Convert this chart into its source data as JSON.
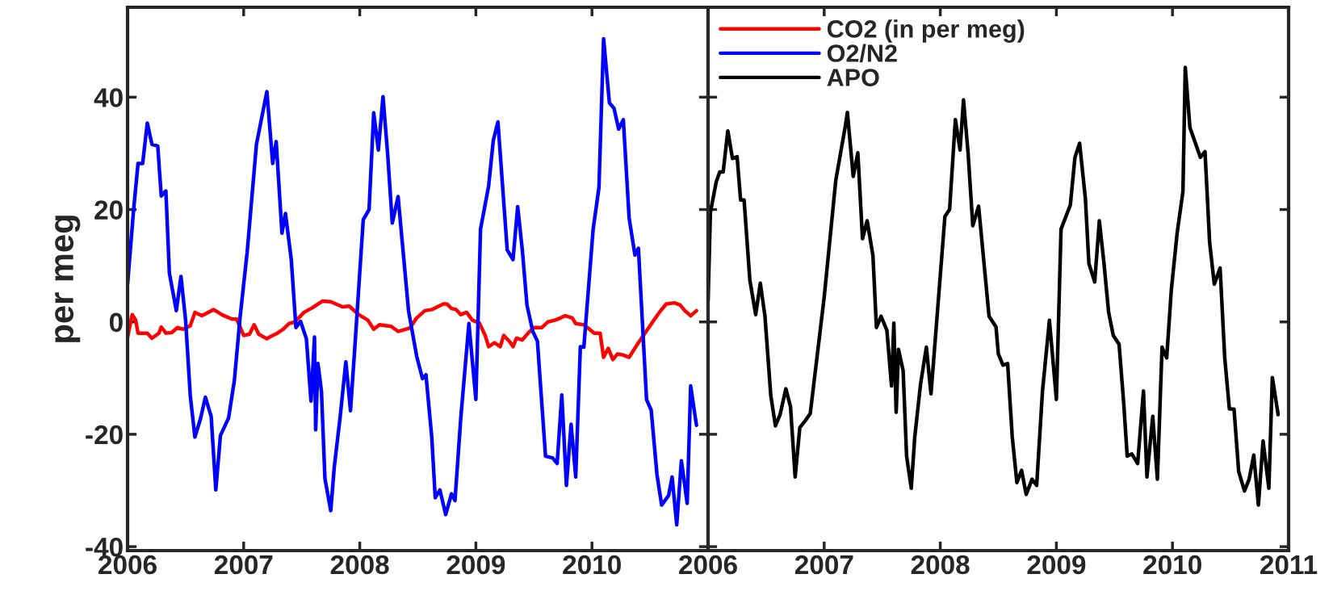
{
  "chart_data": [
    {
      "type": "line",
      "ylabel": "per meg",
      "xlim": [
        2006,
        2011
      ],
      "ylim": [
        -40.7,
        56
      ],
      "xticks": [
        2006,
        2007,
        2008,
        2009,
        2010,
        {
          "value": 2011,
          "label": null
        }
      ],
      "yticks": [
        -40,
        -20,
        0,
        20,
        40
      ],
      "grid": false,
      "legend": "right",
      "marker": "none",
      "line_style": "solid",
      "series": [
        {
          "name": "CO2 (in per meg)",
          "color": "#ff0000",
          "x": [
            2006.0,
            2006.04,
            2006.07,
            2006.09,
            2006.17,
            2006.21,
            2006.27,
            2006.29,
            2006.33,
            2006.38,
            2006.43,
            2006.48,
            2006.54,
            2006.58,
            2006.64,
            2006.74,
            2006.82,
            2006.9,
            2006.94,
            2007.0,
            2007.05,
            2007.09,
            2007.13,
            2007.2,
            2007.24,
            2007.29,
            2007.34,
            2007.39,
            2007.44,
            2007.52,
            2007.59,
            2007.68,
            2007.75,
            2007.85,
            2007.91,
            2007.99,
            2008.07,
            2008.12,
            2008.17,
            2008.27,
            2008.33,
            2008.43,
            2008.49,
            2008.56,
            2008.62,
            2008.72,
            2008.75,
            2008.79,
            2008.83,
            2008.87,
            2008.92,
            2008.97,
            2009.03,
            2009.08,
            2009.11,
            2009.16,
            2009.21,
            2009.24,
            2009.29,
            2009.32,
            2009.35,
            2009.4,
            2009.45,
            2009.5,
            2009.57,
            2009.62,
            2009.68,
            2009.73,
            2009.77,
            2009.83,
            2009.86,
            2009.93,
            2009.99,
            2010.02,
            2010.07,
            2010.1,
            2010.14,
            2010.18,
            2010.22,
            2010.27,
            2010.32,
            2010.36,
            2010.41,
            2010.48,
            2010.53,
            2010.58,
            2010.64,
            2010.71,
            2010.76,
            2010.8,
            2010.85,
            2010.9
          ],
          "values": [
            -2.7,
            1.3,
            0.3,
            -2.0,
            -2.0,
            -2.9,
            -2.0,
            -0.9,
            -2.0,
            -1.9,
            -1.0,
            -1.3,
            -0.7,
            1.7,
            1.1,
            2.2,
            1.2,
            0.5,
            0.5,
            -2.4,
            -2.2,
            -0.5,
            -2.2,
            -3.0,
            -2.5,
            -2.0,
            -1.3,
            -0.3,
            0.0,
            1.7,
            2.5,
            3.7,
            3.6,
            2.7,
            2.8,
            1.3,
            0.3,
            -1.3,
            -0.5,
            -0.8,
            -1.7,
            -1.1,
            0.7,
            2.0,
            2.2,
            3.2,
            3.2,
            2.4,
            2.2,
            1.3,
            1.7,
            0.3,
            -0.2,
            -2.4,
            -4.4,
            -3.7,
            -4.4,
            -2.4,
            -3.5,
            -4.4,
            -2.9,
            -3.2,
            -2.0,
            -1.0,
            -1.0,
            0.0,
            0.3,
            0.7,
            1.1,
            0.7,
            -0.3,
            -0.5,
            -1.5,
            -2.0,
            -2.0,
            -6.3,
            -4.7,
            -6.7,
            -5.7,
            -5.9,
            -6.3,
            -5.0,
            -3.4,
            -1.3,
            0.2,
            1.7,
            3.2,
            3.4,
            3.0,
            2.0,
            1.1,
            2.0
          ]
        },
        {
          "name": "O2/N2",
          "color": "#0000ff",
          "x": [
            2006.0,
            2006.05,
            2006.09,
            2006.13,
            2006.17,
            2006.21,
            2006.26,
            2006.29,
            2006.33,
            2006.36,
            2006.42,
            2006.46,
            2006.5,
            2006.54,
            2006.58,
            2006.63,
            2006.67,
            2006.72,
            2006.76,
            2006.8,
            2006.87,
            2006.92,
            2006.97,
            2007.03,
            2007.11,
            2007.2,
            2007.25,
            2007.28,
            2007.33,
            2007.36,
            2007.41,
            2007.45,
            2007.49,
            2007.54,
            2007.58,
            2007.61,
            2007.62,
            2007.64,
            2007.67,
            2007.7,
            2007.75,
            2007.78,
            2007.83,
            2007.88,
            2007.92,
            2007.96,
            2008.03,
            2008.08,
            2008.12,
            2008.16,
            2008.2,
            2008.24,
            2008.28,
            2008.33,
            2008.42,
            2008.49,
            2008.54,
            2008.57,
            2008.62,
            2008.65,
            2008.69,
            2008.74,
            2008.79,
            2008.82,
            2008.87,
            2008.94,
            2009.0,
            2009.04,
            2009.11,
            2009.15,
            2009.19,
            2009.27,
            2009.32,
            2009.36,
            2009.4,
            2009.44,
            2009.49,
            2009.53,
            2009.6,
            2009.66,
            2009.7,
            2009.74,
            2009.78,
            2009.82,
            2009.86,
            2009.9,
            2009.93,
            2010.01,
            2010.06,
            2010.1,
            2010.15,
            2010.19,
            2010.23,
            2010.27,
            2010.32,
            2010.37,
            2010.4,
            2010.47,
            2010.51,
            2010.56,
            2010.6,
            2010.66,
            2010.69,
            2010.73,
            2010.77,
            2010.82,
            2010.85,
            2010.9
          ],
          "values": [
            6.7,
            19.5,
            28.2,
            28.2,
            35.4,
            31.6,
            31.3,
            22.4,
            23.3,
            8.7,
            2.0,
            8.1,
            0.3,
            -13.1,
            -20.5,
            -17.1,
            -13.4,
            -16.8,
            -29.9,
            -20.2,
            -17.1,
            -10.4,
            1.0,
            12.4,
            31.6,
            41.0,
            28.2,
            32.1,
            15.8,
            19.3,
            11.1,
            -1.0,
            0.1,
            -3.0,
            -14.1,
            -2.7,
            -19.2,
            -7.4,
            -12.4,
            -27.9,
            -33.6,
            -25.9,
            -17.1,
            -7.1,
            -15.8,
            -3.7,
            18.2,
            20.0,
            37.2,
            30.6,
            40.1,
            29.9,
            17.6,
            22.3,
            2.0,
            -6.1,
            -10.1,
            -9.4,
            -20.5,
            -31.3,
            -29.9,
            -34.3,
            -30.6,
            -31.8,
            -17.1,
            -0.3,
            -13.8,
            16.5,
            24.2,
            32.3,
            35.6,
            12.8,
            11.1,
            20.5,
            12.8,
            3.0,
            -1.7,
            -3.4,
            -23.9,
            -24.2,
            -25.2,
            -13.0,
            -29.1,
            -18.2,
            -27.6,
            -4.4,
            -4.5,
            16.5,
            23.9,
            50.4,
            39.0,
            38.0,
            34.3,
            36.0,
            18.5,
            11.9,
            13.1,
            -13.8,
            -15.7,
            -27.2,
            -32.6,
            -30.9,
            -27.6,
            -36.1,
            -24.7,
            -32.3,
            -11.4,
            -18.4
          ]
        }
      ]
    },
    {
      "type": "line",
      "xlim": [
        2006,
        2011
      ],
      "ylim": [
        -40.7,
        56
      ],
      "xticks": [
        2006,
        2007,
        2008,
        2009,
        2010,
        2011
      ],
      "yticks": [
        {
          "value": -40,
          "label": null
        },
        {
          "value": -20,
          "label": null
        },
        {
          "value": 0,
          "label": null
        },
        {
          "value": 20,
          "label": null
        },
        {
          "value": 40,
          "label": null
        }
      ],
      "tick_labels": "x",
      "grid": false,
      "legend": "top left",
      "marker": "none",
      "line_style": "solid",
      "series": [
        {
          "name": "APO",
          "color": "#000000",
          "x": [
            2006.0,
            2006.02,
            2006.07,
            2006.1,
            2006.13,
            2006.17,
            2006.21,
            2006.25,
            2006.28,
            2006.31,
            2006.36,
            2006.41,
            2006.45,
            2006.49,
            2006.54,
            2006.58,
            2006.62,
            2006.67,
            2006.71,
            2006.75,
            2006.79,
            2006.84,
            2006.88,
            2006.93,
            2007.0,
            2007.1,
            2007.18,
            2007.2,
            2007.25,
            2007.29,
            2007.33,
            2007.37,
            2007.42,
            2007.45,
            2007.49,
            2007.54,
            2007.58,
            2007.6,
            2007.62,
            2007.64,
            2007.68,
            2007.71,
            2007.75,
            2007.78,
            2007.83,
            2007.88,
            2007.92,
            2007.98,
            2008.04,
            2008.08,
            2008.13,
            2008.17,
            2008.2,
            2008.24,
            2008.28,
            2008.33,
            2008.42,
            2008.48,
            2008.5,
            2008.54,
            2008.58,
            2008.62,
            2008.66,
            2008.7,
            2008.74,
            2008.79,
            2008.83,
            2008.88,
            2008.94,
            2009.0,
            2009.04,
            2009.12,
            2009.16,
            2009.2,
            2009.25,
            2009.28,
            2009.33,
            2009.37,
            2009.41,
            2009.45,
            2009.49,
            2009.54,
            2009.58,
            2009.61,
            2009.65,
            2009.7,
            2009.75,
            2009.78,
            2009.83,
            2009.87,
            2009.91,
            2009.95,
            2009.99,
            2010.04,
            2010.09,
            2010.11,
            2010.15,
            2010.24,
            2010.28,
            2010.32,
            2010.36,
            2010.41,
            2010.45,
            2010.49,
            2010.53,
            2010.57,
            2010.62,
            2010.66,
            2010.7,
            2010.74,
            2010.78,
            2010.83,
            2010.86,
            2010.91
          ],
          "values": [
            3.7,
            19.5,
            24.9,
            26.7,
            26.7,
            34.0,
            29.1,
            29.4,
            21.7,
            21.7,
            7.4,
            1.3,
            6.9,
            1.0,
            -13.1,
            -18.5,
            -16.5,
            -11.9,
            -15.1,
            -27.6,
            -18.8,
            -17.5,
            -16.3,
            -7.7,
            4.4,
            25.2,
            34.6,
            37.3,
            25.9,
            30.1,
            14.8,
            18.0,
            11.8,
            -1.0,
            1.0,
            -1.5,
            -11.4,
            -0.2,
            -16.1,
            -4.9,
            -8.7,
            -23.9,
            -29.6,
            -20.5,
            -11.1,
            -4.5,
            -12.8,
            3.0,
            18.8,
            20.0,
            36.0,
            30.6,
            39.5,
            29.9,
            17.1,
            20.6,
            1.0,
            -0.9,
            -5.7,
            -7.7,
            -7.4,
            -20.5,
            -28.6,
            -26.4,
            -30.7,
            -28.0,
            -29.1,
            -12.4,
            0.3,
            -13.8,
            16.5,
            20.8,
            29.3,
            31.8,
            21.9,
            10.4,
            7.1,
            18.0,
            10.4,
            1.7,
            -2.4,
            -4.0,
            -14.5,
            -23.9,
            -23.5,
            -25.2,
            -12.3,
            -27.6,
            -16.8,
            -28.0,
            -4.5,
            -6.4,
            5.7,
            15.8,
            23.2,
            45.3,
            34.6,
            29.3,
            30.3,
            14.1,
            6.7,
            9.6,
            -6.4,
            -15.5,
            -15.5,
            -26.6,
            -30.1,
            -28.0,
            -23.7,
            -32.6,
            -21.2,
            -29.6,
            -9.9,
            -16.5
          ]
        }
      ]
    }
  ]
}
